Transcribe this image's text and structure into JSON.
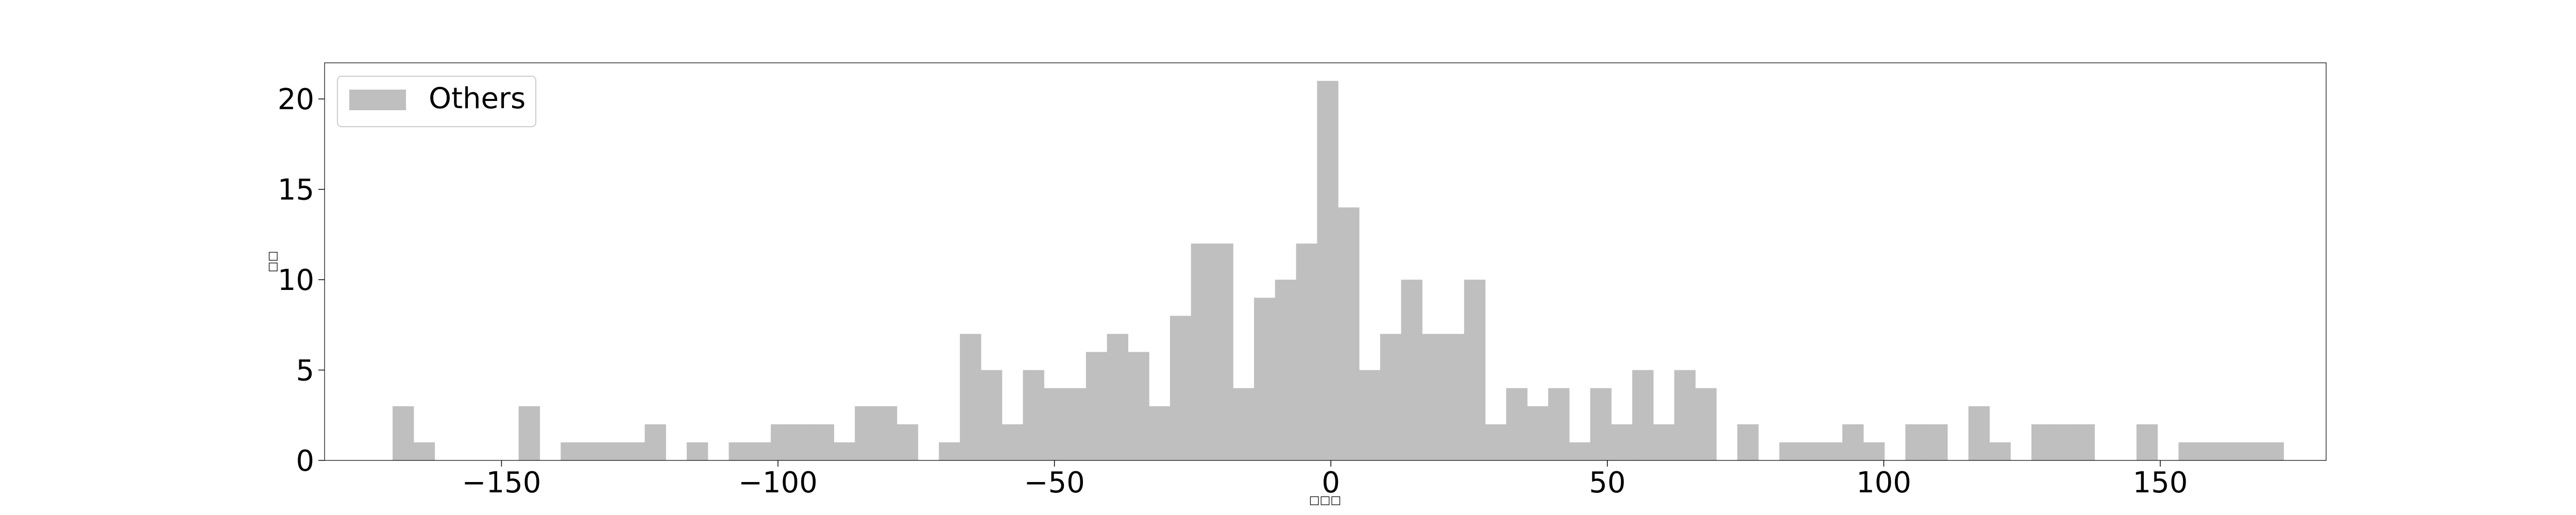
{
  "chart_data": {
    "type": "bar",
    "subtype": "histogram",
    "title": "",
    "xlabel": "□□□",
    "ylabel": "□□",
    "xlim": [
      -182,
      180
    ],
    "ylim": [
      0,
      22
    ],
    "x_ticks": [
      -150,
      -100,
      -50,
      0,
      50,
      100,
      150
    ],
    "x_tick_labels": [
      "−150",
      "−100",
      "−50",
      "0",
      "50",
      "100",
      "150"
    ],
    "y_ticks": [
      0,
      5,
      10,
      15,
      20
    ],
    "y_tick_labels": [
      "0",
      "5",
      "10",
      "15",
      "20"
    ],
    "grid": false,
    "legend": {
      "position": "top-left",
      "entries": [
        {
          "label": "Others",
          "color": "#bfbfbf"
        }
      ]
    },
    "bin_width": 3.8,
    "series": [
      {
        "name": "Others",
        "color": "#bfbfbf",
        "bins": [
          {
            "x0": -169.7,
            "count": 3
          },
          {
            "x0": -165.9,
            "count": 1
          },
          {
            "x0": -146.9,
            "count": 3
          },
          {
            "x0": -139.3,
            "count": 1
          },
          {
            "x0": -135.5,
            "count": 1
          },
          {
            "x0": -131.7,
            "count": 1
          },
          {
            "x0": -127.9,
            "count": 1
          },
          {
            "x0": -124.1,
            "count": 2
          },
          {
            "x0": -116.5,
            "count": 1
          },
          {
            "x0": -108.9,
            "count": 1
          },
          {
            "x0": -105.1,
            "count": 1
          },
          {
            "x0": -101.3,
            "count": 2
          },
          {
            "x0": -97.5,
            "count": 2
          },
          {
            "x0": -93.7,
            "count": 2
          },
          {
            "x0": -89.9,
            "count": 1
          },
          {
            "x0": -86.1,
            "count": 3
          },
          {
            "x0": -82.3,
            "count": 3
          },
          {
            "x0": -78.5,
            "count": 2
          },
          {
            "x0": -70.9,
            "count": 1
          },
          {
            "x0": -67.1,
            "count": 7
          },
          {
            "x0": -63.3,
            "count": 5
          },
          {
            "x0": -59.5,
            "count": 2
          },
          {
            "x0": -55.7,
            "count": 5
          },
          {
            "x0": -51.9,
            "count": 4
          },
          {
            "x0": -48.1,
            "count": 4
          },
          {
            "x0": -44.3,
            "count": 6
          },
          {
            "x0": -40.5,
            "count": 7
          },
          {
            "x0": -36.7,
            "count": 6
          },
          {
            "x0": -32.9,
            "count": 3
          },
          {
            "x0": -29.1,
            "count": 8
          },
          {
            "x0": -25.3,
            "count": 12
          },
          {
            "x0": -21.5,
            "count": 12
          },
          {
            "x0": -17.7,
            "count": 4
          },
          {
            "x0": -13.9,
            "count": 9
          },
          {
            "x0": -10.1,
            "count": 10
          },
          {
            "x0": -6.3,
            "count": 12
          },
          {
            "x0": -2.5,
            "count": 21
          },
          {
            "x0": 1.3,
            "count": 14
          },
          {
            "x0": 5.1,
            "count": 5
          },
          {
            "x0": 8.9,
            "count": 7
          },
          {
            "x0": 12.7,
            "count": 10
          },
          {
            "x0": 16.5,
            "count": 7
          },
          {
            "x0": 20.3,
            "count": 7
          },
          {
            "x0": 24.1,
            "count": 10
          },
          {
            "x0": 27.9,
            "count": 2
          },
          {
            "x0": 31.7,
            "count": 4
          },
          {
            "x0": 35.5,
            "count": 3
          },
          {
            "x0": 39.3,
            "count": 4
          },
          {
            "x0": 43.1,
            "count": 1
          },
          {
            "x0": 46.9,
            "count": 4
          },
          {
            "x0": 50.7,
            "count": 2
          },
          {
            "x0": 54.5,
            "count": 5
          },
          {
            "x0": 58.3,
            "count": 2
          },
          {
            "x0": 62.1,
            "count": 5
          },
          {
            "x0": 65.9,
            "count": 4
          },
          {
            "x0": 73.5,
            "count": 2
          },
          {
            "x0": 81.1,
            "count": 1
          },
          {
            "x0": 84.9,
            "count": 1
          },
          {
            "x0": 88.7,
            "count": 1
          },
          {
            "x0": 92.5,
            "count": 2
          },
          {
            "x0": 96.3,
            "count": 1
          },
          {
            "x0": 103.9,
            "count": 2
          },
          {
            "x0": 107.7,
            "count": 2
          },
          {
            "x0": 115.3,
            "count": 3
          },
          {
            "x0": 119.1,
            "count": 1
          },
          {
            "x0": 126.7,
            "count": 2
          },
          {
            "x0": 130.5,
            "count": 2
          },
          {
            "x0": 134.3,
            "count": 2
          },
          {
            "x0": 145.7,
            "count": 2
          },
          {
            "x0": 153.3,
            "count": 1
          },
          {
            "x0": 157.1,
            "count": 1
          },
          {
            "x0": 160.9,
            "count": 1
          },
          {
            "x0": 164.7,
            "count": 1
          },
          {
            "x0": 168.5,
            "count": 1
          }
        ]
      }
    ]
  }
}
